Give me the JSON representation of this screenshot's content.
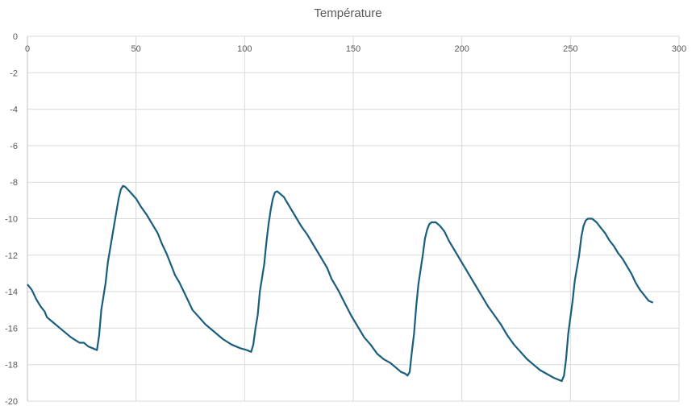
{
  "chart_data": {
    "type": "line",
    "title": "Température",
    "xlabel": "",
    "ylabel": "",
    "xlim": [
      0,
      300
    ],
    "ylim": [
      -20,
      0
    ],
    "x_ticks": [
      0,
      50,
      100,
      150,
      200,
      250,
      300
    ],
    "y_ticks": [
      0,
      -2,
      -4,
      -6,
      -8,
      -10,
      -12,
      -14,
      -16,
      -18,
      -20
    ],
    "x_axis_position": "top",
    "grid": true,
    "legend": "none",
    "line_color": "#1a5e7e",
    "series": [
      {
        "x": [
          0,
          2,
          4,
          6,
          8,
          9,
          12,
          16,
          20,
          24,
          26,
          28,
          30,
          32,
          33,
          34,
          36,
          37,
          39,
          41,
          42,
          43,
          44,
          45,
          47,
          50,
          52,
          55,
          58,
          60,
          62,
          64,
          66,
          68,
          70,
          72,
          74,
          76,
          79,
          82,
          86,
          90,
          94,
          98,
          101,
          103,
          104,
          105,
          106,
          107,
          109,
          110,
          111,
          112,
          113,
          114,
          115,
          116,
          118,
          120,
          123,
          126,
          129,
          132,
          135,
          138,
          140,
          143,
          146,
          149,
          152,
          155,
          158,
          161,
          164,
          167,
          170,
          172,
          174,
          175,
          176,
          177,
          178,
          179,
          180,
          182,
          183,
          184,
          185,
          186,
          188,
          190,
          192,
          194,
          197,
          200,
          203,
          206,
          209,
          212,
          215,
          218,
          221,
          224,
          227,
          230,
          233,
          236,
          239,
          242,
          245,
          246,
          247,
          248,
          249,
          251,
          252,
          254,
          255,
          256,
          257,
          258,
          260,
          262,
          264,
          266,
          268,
          270,
          272,
          274,
          276,
          278,
          280,
          282,
          284,
          286,
          288
        ],
        "y": [
          -13.6,
          -13.9,
          -14.4,
          -14.8,
          -15.1,
          -15.4,
          -15.7,
          -16.1,
          -16.5,
          -16.8,
          -16.8,
          -17.0,
          -17.1,
          -17.2,
          -16.4,
          -15.0,
          -13.5,
          -12.4,
          -11.0,
          -9.6,
          -8.9,
          -8.4,
          -8.2,
          -8.25,
          -8.5,
          -8.9,
          -9.3,
          -9.8,
          -10.4,
          -10.8,
          -11.4,
          -11.9,
          -12.5,
          -13.1,
          -13.5,
          -14.0,
          -14.5,
          -15.0,
          -15.4,
          -15.8,
          -16.2,
          -16.6,
          -16.9,
          -17.1,
          -17.2,
          -17.3,
          -16.9,
          -16.0,
          -15.3,
          -14.0,
          -12.5,
          -11.3,
          -10.3,
          -9.5,
          -8.9,
          -8.55,
          -8.5,
          -8.6,
          -8.8,
          -9.2,
          -9.8,
          -10.4,
          -10.9,
          -11.5,
          -12.1,
          -12.7,
          -13.3,
          -13.9,
          -14.6,
          -15.3,
          -15.9,
          -16.5,
          -16.9,
          -17.4,
          -17.7,
          -17.9,
          -18.2,
          -18.4,
          -18.5,
          -18.6,
          -18.4,
          -17.3,
          -16.3,
          -14.8,
          -13.6,
          -12.0,
          -11.1,
          -10.6,
          -10.3,
          -10.2,
          -10.2,
          -10.4,
          -10.7,
          -11.2,
          -11.8,
          -12.4,
          -13.0,
          -13.6,
          -14.2,
          -14.8,
          -15.3,
          -15.8,
          -16.4,
          -16.9,
          -17.3,
          -17.7,
          -18.0,
          -18.3,
          -18.5,
          -18.7,
          -18.85,
          -18.9,
          -18.6,
          -17.7,
          -16.3,
          -14.5,
          -13.4,
          -12.0,
          -11.0,
          -10.4,
          -10.1,
          -10.0,
          -10.0,
          -10.2,
          -10.5,
          -10.8,
          -11.2,
          -11.5,
          -11.9,
          -12.2,
          -12.6,
          -13.0,
          -13.5,
          -13.9,
          -14.2,
          -14.5,
          -14.6
        ]
      }
    ]
  }
}
